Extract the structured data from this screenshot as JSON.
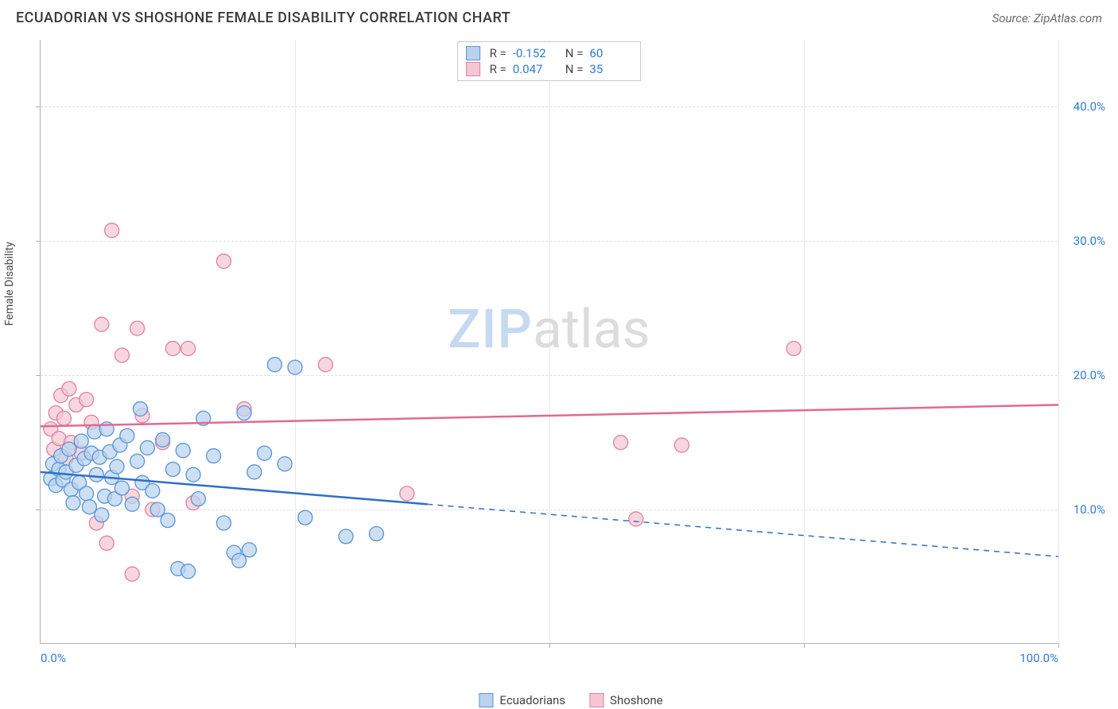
{
  "header": {
    "title": "ECUADORIAN VS SHOSHONE FEMALE DISABILITY CORRELATION CHART",
    "source": "Source: ZipAtlas.com"
  },
  "watermark": {
    "zip": "ZIP",
    "atlas": "atlas"
  },
  "chart": {
    "type": "scatter",
    "y_axis_label": "Female Disability",
    "xlim": [
      0,
      100
    ],
    "ylim": [
      0,
      45
    ],
    "x_ticks": [
      0,
      50,
      100
    ],
    "x_tick_labels": [
      "0.0%",
      "",
      "100.0%"
    ],
    "x_minor_ticks": [
      25,
      75
    ],
    "y_ticks": [
      10,
      20,
      30,
      40
    ],
    "y_tick_labels": [
      "10.0%",
      "20.0%",
      "30.0%",
      "40.0%"
    ],
    "grid_color": "#e0e0e0",
    "axis_color": "#b0b0b0",
    "background_color": "#ffffff",
    "tick_label_color": "#2e7cd6",
    "tick_label_fontsize": 15,
    "axis_label_fontsize": 14,
    "title_fontsize": 18,
    "series": [
      {
        "name": "Ecuadorians",
        "R": "-0.152",
        "N": "60",
        "marker_fill": "#b9d3ef",
        "marker_stroke": "#5a94d6",
        "marker_radius": 9,
        "marker_opacity": 0.72,
        "line_color": "#2e6fc7",
        "line_width": 2.5,
        "trend_solid": {
          "x1": 0,
          "y1": 12.8,
          "x2": 38,
          "y2": 10.4
        },
        "trend_dashed": {
          "x1": 38,
          "y1": 10.4,
          "x2": 100,
          "y2": 6.5
        },
        "points": [
          [
            1.0,
            12.3
          ],
          [
            1.2,
            13.4
          ],
          [
            1.5,
            11.8
          ],
          [
            1.8,
            13.0
          ],
          [
            2.0,
            14.0
          ],
          [
            2.2,
            12.2
          ],
          [
            2.5,
            12.8
          ],
          [
            2.8,
            14.5
          ],
          [
            3.0,
            11.5
          ],
          [
            3.2,
            10.5
          ],
          [
            3.5,
            13.3
          ],
          [
            3.8,
            12.0
          ],
          [
            4.0,
            15.1
          ],
          [
            4.3,
            13.8
          ],
          [
            4.5,
            11.2
          ],
          [
            4.8,
            10.2
          ],
          [
            5.0,
            14.2
          ],
          [
            5.3,
            15.8
          ],
          [
            5.5,
            12.6
          ],
          [
            5.8,
            13.9
          ],
          [
            6.0,
            9.6
          ],
          [
            6.3,
            11.0
          ],
          [
            6.5,
            16.0
          ],
          [
            6.8,
            14.3
          ],
          [
            7.0,
            12.4
          ],
          [
            7.3,
            10.8
          ],
          [
            7.5,
            13.2
          ],
          [
            7.8,
            14.8
          ],
          [
            8.0,
            11.6
          ],
          [
            8.5,
            15.5
          ],
          [
            9.0,
            10.4
          ],
          [
            9.5,
            13.6
          ],
          [
            10.0,
            12.0
          ],
          [
            10.5,
            14.6
          ],
          [
            11.0,
            11.4
          ],
          [
            11.5,
            10.0
          ],
          [
            12.0,
            15.2
          ],
          [
            12.5,
            9.2
          ],
          [
            13.0,
            13.0
          ],
          [
            13.5,
            5.6
          ],
          [
            14.0,
            14.4
          ],
          [
            15.0,
            12.6
          ],
          [
            15.5,
            10.8
          ],
          [
            16.0,
            16.8
          ],
          [
            17.0,
            14.0
          ],
          [
            18.0,
            9.0
          ],
          [
            19.0,
            6.8
          ],
          [
            20.0,
            17.2
          ],
          [
            21.0,
            12.8
          ],
          [
            22.0,
            14.2
          ],
          [
            23.0,
            20.8
          ],
          [
            24.0,
            13.4
          ],
          [
            25.0,
            20.6
          ],
          [
            19.5,
            6.2
          ],
          [
            20.5,
            7.0
          ],
          [
            26.0,
            9.4
          ],
          [
            30.0,
            8.0
          ],
          [
            33.0,
            8.2
          ],
          [
            14.5,
            5.4
          ],
          [
            9.8,
            17.5
          ]
        ]
      },
      {
        "name": "Shoshone",
        "R": "0.047",
        "N": "35",
        "marker_fill": "#f4c7d2",
        "marker_stroke": "#e37fa0",
        "marker_radius": 9,
        "marker_opacity": 0.72,
        "line_color": "#e36a8f",
        "line_width": 2.5,
        "trend_solid": {
          "x1": 0,
          "y1": 16.2,
          "x2": 100,
          "y2": 17.8
        },
        "trend_dashed": null,
        "points": [
          [
            1.0,
            16.0
          ],
          [
            1.3,
            14.5
          ],
          [
            1.5,
            17.2
          ],
          [
            1.8,
            15.3
          ],
          [
            2.0,
            18.5
          ],
          [
            2.3,
            16.8
          ],
          [
            2.5,
            13.8
          ],
          [
            2.8,
            19.0
          ],
          [
            3.0,
            15.0
          ],
          [
            3.5,
            17.8
          ],
          [
            4.0,
            14.2
          ],
          [
            4.5,
            18.2
          ],
          [
            5.0,
            16.5
          ],
          [
            5.5,
            9.0
          ],
          [
            6.0,
            23.8
          ],
          [
            6.5,
            7.5
          ],
          [
            7.0,
            30.8
          ],
          [
            8.0,
            21.5
          ],
          [
            9.0,
            11.0
          ],
          [
            9.5,
            23.5
          ],
          [
            10.0,
            17.0
          ],
          [
            11.0,
            10.0
          ],
          [
            12.0,
            15.0
          ],
          [
            13.0,
            22.0
          ],
          [
            14.5,
            22.0
          ],
          [
            15.0,
            10.5
          ],
          [
            18.0,
            28.5
          ],
          [
            20.0,
            17.5
          ],
          [
            9.0,
            5.2
          ],
          [
            28.0,
            20.8
          ],
          [
            36.0,
            11.2
          ],
          [
            58.5,
            9.3
          ],
          [
            63.0,
            14.8
          ],
          [
            74.0,
            22.0
          ],
          [
            57.0,
            15.0
          ]
        ]
      }
    ]
  },
  "legend_bottom": {
    "items": [
      "Ecuadorians",
      "Shoshone"
    ]
  }
}
